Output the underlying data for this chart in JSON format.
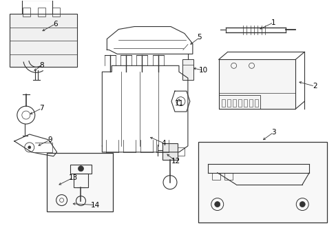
{
  "bg_color": "#ffffff",
  "line_color": "#333333",
  "figsize": [
    4.89,
    3.6
  ],
  "dpi": 100
}
